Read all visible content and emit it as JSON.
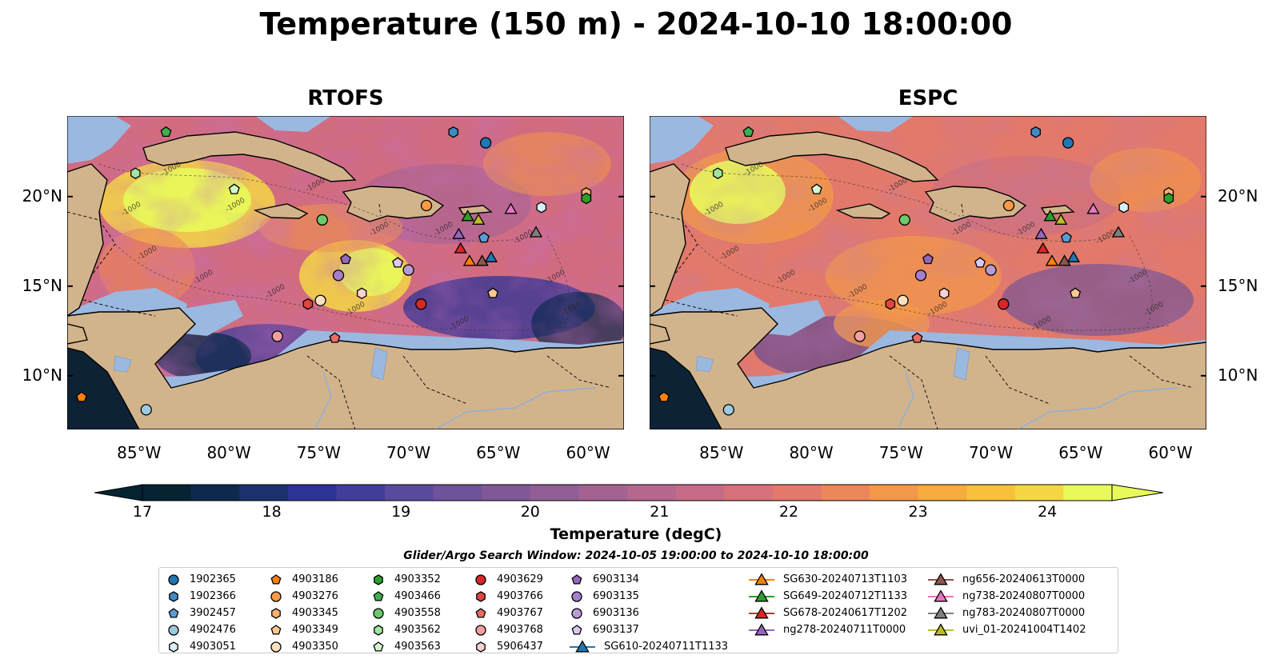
{
  "title": "Temperature (150 m) - 2024-10-10 18:00:00",
  "panels": [
    {
      "id": "rtofs",
      "title": "RTOFS"
    },
    {
      "id": "espc",
      "title": "ESPC"
    }
  ],
  "map": {
    "lon_range": [
      -89,
      -58
    ],
    "lat_range": [
      7,
      24.5
    ],
    "lat_ticks": [
      "10°N",
      "15°N",
      "20°N"
    ],
    "lat_tick_values": [
      10,
      15,
      20
    ],
    "lon_ticks": [
      "85°W",
      "80°W",
      "75°W",
      "70°W",
      "65°W",
      "60°W"
    ],
    "lon_tick_values": [
      -85,
      -80,
      -75,
      -70,
      -65,
      -60
    ],
    "contour_label": "-1000",
    "colors": {
      "land": "#d2b48c",
      "shallow": "#9bb8e0",
      "deep": "#0d2335"
    }
  },
  "colorbar": {
    "label": "Temperature (degC)",
    "ticks": [
      "17",
      "18",
      "19",
      "20",
      "21",
      "22",
      "23",
      "24"
    ],
    "range": [
      17,
      24.5
    ],
    "colors": [
      "#042333",
      "#0d2a4e",
      "#1c2f6e",
      "#2c3395",
      "#413d9a",
      "#5a4a9e",
      "#6e529a",
      "#805898",
      "#925e95",
      "#a46292",
      "#b5678e",
      "#c66b86",
      "#d6717a",
      "#e2796b",
      "#ec8759",
      "#f39848",
      "#f7ab3c",
      "#f8c03c",
      "#f5d745",
      "#e8fa5b"
    ]
  },
  "search_window": "Glider/Argo Search Window: 2024-10-05 19:00:00 to 2024-10-10 18:00:00",
  "legend": [
    [
      {
        "label": "1902365",
        "marker": "circle",
        "color": "#1f77b4"
      },
      {
        "label": "1902366",
        "marker": "hexagon",
        "color": "#3f89c6"
      },
      {
        "label": "3902457",
        "marker": "pentagon",
        "color": "#5b9bd5"
      },
      {
        "label": "4902476",
        "marker": "circle",
        "color": "#9ecae1"
      },
      {
        "label": "4903051",
        "marker": "hexagon",
        "color": "#d6f0fa"
      }
    ],
    [
      {
        "label": "4903186",
        "marker": "pentagon",
        "color": "#ff7f0e"
      },
      {
        "label": "4903276",
        "marker": "circle",
        "color": "#fd9a44"
      },
      {
        "label": "4903345",
        "marker": "hexagon",
        "color": "#fdb06e"
      },
      {
        "label": "4903349",
        "marker": "pentagon",
        "color": "#fdc992"
      },
      {
        "label": "4903350",
        "marker": "circle",
        "color": "#fee0c0"
      }
    ],
    [
      {
        "label": "4903352",
        "marker": "hexagon",
        "color": "#2ca02c"
      },
      {
        "label": "4903466",
        "marker": "pentagon",
        "color": "#3fb04f"
      },
      {
        "label": "4903558",
        "marker": "circle",
        "color": "#6cc96c"
      },
      {
        "label": "4903562",
        "marker": "hexagon",
        "color": "#a1e3a1"
      },
      {
        "label": "4903563",
        "marker": "pentagon",
        "color": "#d4f7cc"
      }
    ],
    [
      {
        "label": "4903629",
        "marker": "circle",
        "color": "#d62728"
      },
      {
        "label": "4903766",
        "marker": "hexagon",
        "color": "#e2453f"
      },
      {
        "label": "4903767",
        "marker": "pentagon",
        "color": "#ee6a64"
      },
      {
        "label": "4903768",
        "marker": "circle",
        "color": "#f4a0a0"
      },
      {
        "label": "5906437",
        "marker": "hexagon",
        "color": "#fbd0d0"
      }
    ],
    [
      {
        "label": "6903134",
        "marker": "pentagon",
        "color": "#9467bd"
      },
      {
        "label": "6903135",
        "marker": "circle",
        "color": "#a57fcb"
      },
      {
        "label": "6903136",
        "marker": "circle",
        "color": "#b89bd6"
      },
      {
        "label": "6903137",
        "marker": "pentagon",
        "color": "#dcc8f0"
      },
      {
        "label": "SG610-20240711T1133",
        "marker": "triangle-line",
        "color": "#1f77b4"
      }
    ],
    [
      {
        "label": "SG630-20240713T1103",
        "marker": "triangle-line",
        "color": "#ff7f0e"
      },
      {
        "label": "SG649-20240712T1133",
        "marker": "triangle-line",
        "color": "#2ca02c"
      },
      {
        "label": "SG678-20240617T1202",
        "marker": "triangle-line",
        "color": "#d62728"
      },
      {
        "label": "ng278-20240711T0000",
        "marker": "triangle-line",
        "color": "#9467bd"
      }
    ],
    [
      {
        "label": "ng656-20240613T0000",
        "marker": "triangle-line",
        "color": "#8c564b"
      },
      {
        "label": "ng738-20240807T0000",
        "marker": "triangle-line",
        "color": "#e377c2"
      },
      {
        "label": "ng783-20240807T0000",
        "marker": "triangle-line",
        "color": "#7f7f7f"
      },
      {
        "label": "uvi_01-20241004T1402",
        "marker": "triangle-line",
        "color": "#bcbd22"
      }
    ]
  ],
  "platforms": [
    {
      "name": "1902365",
      "marker": "circle",
      "color": "#1f77b4",
      "lon": -65.7,
      "lat": 23.0
    },
    {
      "name": "1902366",
      "marker": "hexagon",
      "color": "#3f89c6",
      "lon": -67.5,
      "lat": 23.6
    },
    {
      "name": "3902457",
      "marker": "pentagon",
      "color": "#5b9bd5",
      "lon": -65.8,
      "lat": 17.7
    },
    {
      "name": "4902476",
      "marker": "circle",
      "color": "#9ecae1",
      "lon": -84.6,
      "lat": 8.1
    },
    {
      "name": "4903051",
      "marker": "hexagon",
      "color": "#d6f0fa",
      "lon": -62.6,
      "lat": 19.4
    },
    {
      "name": "4903186",
      "marker": "pentagon",
      "color": "#ff7f0e",
      "lon": -88.2,
      "lat": 8.8
    },
    {
      "name": "4903276",
      "marker": "circle",
      "color": "#fd9a44",
      "lon": -69.0,
      "lat": 19.5
    },
    {
      "name": "4903345",
      "marker": "hexagon",
      "color": "#fdb06e",
      "lon": -60.1,
      "lat": 20.2
    },
    {
      "name": "4903349",
      "marker": "pentagon",
      "color": "#fdc992",
      "lon": -65.3,
      "lat": 14.6
    },
    {
      "name": "4903350",
      "marker": "circle",
      "color": "#fee0c0",
      "lon": -74.9,
      "lat": 14.2
    },
    {
      "name": "4903352",
      "marker": "hexagon",
      "color": "#2ca02c",
      "lon": -60.1,
      "lat": 19.9
    },
    {
      "name": "4903466",
      "marker": "pentagon",
      "color": "#3fb04f",
      "lon": -83.5,
      "lat": 23.6
    },
    {
      "name": "4903558",
      "marker": "circle",
      "color": "#6cc96c",
      "lon": -74.8,
      "lat": 18.7
    },
    {
      "name": "4903562",
      "marker": "hexagon",
      "color": "#a1e3a1",
      "lon": -85.2,
      "lat": 21.3
    },
    {
      "name": "4903563",
      "marker": "pentagon",
      "color": "#d4f7cc",
      "lon": -79.7,
      "lat": 20.4
    },
    {
      "name": "4903629",
      "marker": "circle",
      "color": "#d62728",
      "lon": -69.3,
      "lat": 14.0
    },
    {
      "name": "4903766",
      "marker": "hexagon",
      "color": "#e2453f",
      "lon": -75.6,
      "lat": 14.0
    },
    {
      "name": "4903767",
      "marker": "pentagon",
      "color": "#ee6a64",
      "lon": -74.1,
      "lat": 12.1
    },
    {
      "name": "4903768",
      "marker": "circle",
      "color": "#f4a0a0",
      "lon": -77.3,
      "lat": 12.2
    },
    {
      "name": "5906437",
      "marker": "hexagon",
      "color": "#fbd0d0",
      "lon": -72.6,
      "lat": 14.6
    },
    {
      "name": "6903134",
      "marker": "pentagon",
      "color": "#9467bd",
      "lon": -73.5,
      "lat": 16.5
    },
    {
      "name": "6903135",
      "marker": "circle",
      "color": "#a57fcb",
      "lon": -73.9,
      "lat": 15.6
    },
    {
      "name": "6903136",
      "marker": "circle",
      "color": "#b89bd6",
      "lon": -70.0,
      "lat": 15.9
    },
    {
      "name": "6903137",
      "marker": "pentagon",
      "color": "#dcc8f0",
      "lon": -70.6,
      "lat": 16.3
    },
    {
      "name": "SG610-20240711T1133",
      "marker": "triangle",
      "color": "#1f77b4",
      "lon": -65.4,
      "lat": 16.6
    },
    {
      "name": "SG630-20240713T1103",
      "marker": "triangle",
      "color": "#ff7f0e",
      "lon": -66.6,
      "lat": 16.4
    },
    {
      "name": "SG649-20240712T1133",
      "marker": "triangle",
      "color": "#2ca02c",
      "lon": -66.7,
      "lat": 18.9
    },
    {
      "name": "SG678-20240617T1202",
      "marker": "triangle",
      "color": "#d62728",
      "lon": -67.1,
      "lat": 17.1
    },
    {
      "name": "ng278-20240711T0000",
      "marker": "triangle",
      "color": "#9467bd",
      "lon": -67.2,
      "lat": 17.9
    },
    {
      "name": "ng656-20240613T0000",
      "marker": "triangle",
      "color": "#8c564b",
      "lon": -65.9,
      "lat": 16.4
    },
    {
      "name": "ng738-20240807T0000",
      "marker": "triangle",
      "color": "#e377c2",
      "lon": -64.3,
      "lat": 19.3
    },
    {
      "name": "ng783-20240807T0000",
      "marker": "triangle",
      "color": "#7f7f7f",
      "lon": -62.9,
      "lat": 18.0
    },
    {
      "name": "uvi_01-20241004T1402",
      "marker": "triangle",
      "color": "#bcbd22",
      "lon": -66.1,
      "lat": 18.7
    }
  ]
}
